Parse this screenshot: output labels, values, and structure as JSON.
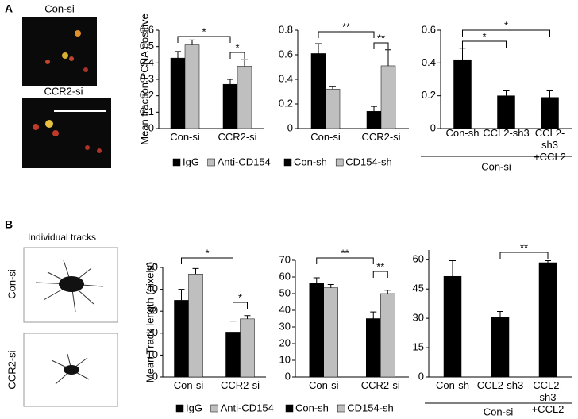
{
  "panels": [
    {
      "label": "A",
      "images": [
        "Con-si",
        "CCR2-si"
      ]
    },
    {
      "label": "B",
      "title": "Individual tracks",
      "images": [
        "Con-si",
        "CCR2-si"
      ]
    }
  ],
  "chart_data": [
    {
      "type": "bar",
      "ylabel": "Mean fraction PCNA positive",
      "categories": [
        "Con-si",
        "CCR2-si"
      ],
      "series": [
        {
          "name": "IgG",
          "color": "#000000",
          "values": [
            0.43,
            0.27
          ],
          "errors": [
            0.04,
            0.03
          ]
        },
        {
          "name": "Anti-CD154",
          "color": "#bfbfbf",
          "values": [
            0.51,
            0.38
          ],
          "errors": [
            0.03,
            0.04
          ]
        }
      ],
      "ylim": [
        0,
        0.6
      ],
      "yticks": [
        0,
        0.1,
        0.2,
        0.3,
        0.4,
        0.5,
        0.6
      ],
      "annotations": [
        "*",
        "*"
      ]
    },
    {
      "type": "bar",
      "categories": [
        "Con-si",
        "CCR2-si"
      ],
      "series": [
        {
          "name": "Con-sh",
          "color": "#000000",
          "values": [
            0.61,
            0.14
          ],
          "errors": [
            0.08,
            0.04
          ]
        },
        {
          "name": "CD154-sh",
          "color": "#bfbfbf",
          "values": [
            0.32,
            0.51
          ],
          "errors": [
            0.02,
            0.13
          ]
        }
      ],
      "ylim": [
        0,
        0.8
      ],
      "yticks": [
        0,
        0.2,
        0.4,
        0.6,
        0.8
      ],
      "annotations": [
        "**",
        "**"
      ]
    },
    {
      "type": "bar",
      "categories": [
        "Con-sh",
        "CCL2-sh3",
        "CCL2-sh3\n+CCL2"
      ],
      "group_label": "Con-si",
      "series": [
        {
          "color": "#000000",
          "values": [
            0.42,
            0.2,
            0.19
          ],
          "errors": [
            0.07,
            0.03,
            0.04
          ]
        }
      ],
      "ylim": [
        0,
        0.6
      ],
      "yticks": [
        0,
        0.2,
        0.4,
        0.6
      ],
      "annotations": [
        "*",
        "*"
      ]
    },
    {
      "type": "bar",
      "ylabel": "Mean Track length (pixels)",
      "categories": [
        "Con-si",
        "CCR2-si"
      ],
      "series": [
        {
          "name": "IgG",
          "color": "#000000",
          "values": [
            35,
            20.5
          ],
          "errors": [
            5,
            5
          ]
        },
        {
          "name": "Anti-CD154",
          "color": "#bfbfbf",
          "values": [
            47,
            26.5
          ],
          "errors": [
            2.5,
            1.5
          ]
        }
      ],
      "ylim": [
        0,
        50
      ],
      "yticks": [
        0,
        10,
        20,
        30,
        40,
        50
      ],
      "annotations": [
        "*",
        "*"
      ]
    },
    {
      "type": "bar",
      "categories": [
        "Con-si",
        "CCR2-si"
      ],
      "series": [
        {
          "name": "Con-sh",
          "color": "#000000",
          "values": [
            56.5,
            35
          ],
          "errors": [
            3,
            4
          ]
        },
        {
          "name": "CD154-sh",
          "color": "#bfbfbf",
          "values": [
            53.5,
            50
          ],
          "errors": [
            2,
            2
          ]
        }
      ],
      "ylim": [
        0,
        70
      ],
      "yticks": [
        0,
        10,
        20,
        30,
        40,
        50,
        60,
        70
      ],
      "annotations": [
        "**",
        "**"
      ]
    },
    {
      "type": "bar",
      "categories": [
        "Con-sh",
        "CCL2-sh3",
        "CCL2-sh3\n+CCL2"
      ],
      "group_label": "Con-si",
      "series": [
        {
          "color": "#000000",
          "values": [
            51.5,
            30.5,
            58.5
          ],
          "errors": [
            8,
            3,
            1
          ]
        }
      ],
      "ylim": [
        0,
        65
      ],
      "yticks": [
        0,
        15,
        30,
        45,
        60
      ],
      "annotations": [
        "**"
      ]
    }
  ]
}
